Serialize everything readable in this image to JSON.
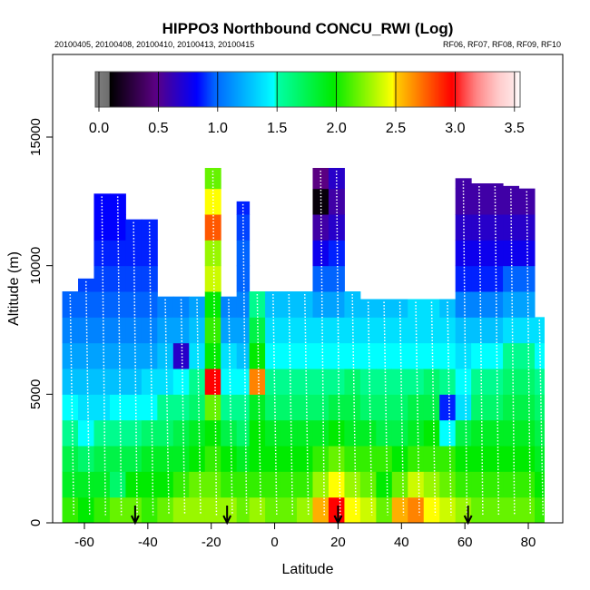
{
  "chart_data": {
    "type": "heatmap",
    "title": "HIPPO3 Northbound CONCU_RWI (Log)",
    "subtitle_left": "20100405, 20100408, 20100410, 20100413, 20100415",
    "subtitle_right": "RF06, RF07, RF08, RF09, RF10",
    "xlabel": "Latitude",
    "ylabel": "Altitude (m)",
    "xlim": [
      -70,
      91
    ],
    "ylim": [
      0,
      18200
    ],
    "xticks": [
      "-60",
      "-40",
      "-20",
      "0",
      "20",
      "40",
      "60",
      "80"
    ],
    "xtick_values": [
      -60,
      -40,
      -20,
      0,
      20,
      40,
      60,
      80
    ],
    "yticks": [
      "0",
      "5000",
      "10000",
      "15000"
    ],
    "ytick_values": [
      0,
      5000,
      10000,
      15000
    ],
    "colorbar": {
      "ticks": [
        "0.0",
        "0.5",
        "1.0",
        "1.5",
        "2.0",
        "2.5",
        "3.0",
        "3.5"
      ],
      "tick_values": [
        0,
        0.5,
        1.0,
        1.5,
        2.0,
        2.5,
        3.0,
        3.5
      ],
      "range": [
        0,
        3.55
      ]
    },
    "altitude_bin_m": 1000,
    "columns": [
      {
        "lat": [
          -67,
          -62
        ],
        "top": 9000,
        "values": [
          2.1,
          1.9,
          1.8,
          1.6,
          1.5,
          1.3,
          1.2,
          1.1,
          1.0
        ]
      },
      {
        "lat": [
          -62,
          -57
        ],
        "top": 9500,
        "values": [
          2.0,
          1.9,
          1.7,
          1.5,
          1.4,
          1.3,
          1.2,
          1.1,
          1.0,
          0.95
        ]
      },
      {
        "lat": [
          -57,
          -52
        ],
        "top": 12800,
        "values": [
          2.1,
          1.9,
          1.8,
          1.6,
          1.4,
          1.3,
          1.2,
          1.1,
          1.0,
          0.95,
          0.9,
          0.85,
          0.85
        ]
      },
      {
        "lat": [
          -52,
          -47
        ],
        "top": 12800,
        "values": [
          2.2,
          1.7,
          1.8,
          1.6,
          1.5,
          1.3,
          1.2,
          1.1,
          1.0,
          0.95,
          0.9,
          0.85,
          0.85
        ]
      },
      {
        "lat": [
          -47,
          -42
        ],
        "top": 11800,
        "values": [
          2.2,
          2.0,
          1.8,
          1.6,
          1.5,
          1.3,
          1.2,
          1.1,
          1.0,
          0.95,
          0.9,
          0.9
        ]
      },
      {
        "lat": [
          -42,
          -37
        ],
        "top": 11800,
        "values": [
          2.1,
          2.0,
          1.9,
          1.7,
          1.5,
          1.4,
          1.2,
          1.1,
          1.0,
          0.95,
          0.9,
          0.9
        ]
      },
      {
        "lat": [
          -37,
          -32
        ],
        "top": 8800,
        "values": [
          2.2,
          2.0,
          1.9,
          1.7,
          1.6,
          1.4,
          1.3,
          1.2,
          1.1
        ]
      },
      {
        "lat": [
          -32,
          -27
        ],
        "top": 8800,
        "values": [
          2.3,
          2.1,
          1.9,
          1.8,
          1.6,
          1.5,
          0.7,
          1.2,
          1.1
        ]
      },
      {
        "lat": [
          -27,
          -22
        ],
        "top": 8800,
        "values": [
          2.3,
          2.2,
          2.0,
          1.9,
          1.7,
          1.6,
          1.4,
          1.3,
          1.2
        ]
      },
      {
        "lat": [
          -22,
          -17
        ],
        "top": 13800,
        "values": [
          2.3,
          2.2,
          2.1,
          2.0,
          2.2,
          3.0,
          2.0,
          2.1,
          2.0,
          2.4,
          2.3,
          2.8,
          2.5,
          2.2
        ]
      },
      {
        "lat": [
          -17,
          -12
        ],
        "top": 8800,
        "values": [
          2.3,
          2.1,
          2.0,
          1.8,
          1.6,
          1.5,
          1.4,
          1.2,
          1.1
        ]
      },
      {
        "lat": [
          -12,
          -8
        ],
        "top": 12500,
        "values": [
          2.2,
          2.1,
          1.9,
          1.7,
          1.6,
          1.5,
          1.3,
          1.2,
          1.1,
          1.0,
          1.0,
          0.95,
          0.9
        ]
      },
      {
        "lat": [
          -8,
          -3
        ],
        "top": 9000,
        "values": [
          2.3,
          2.1,
          2.0,
          2.0,
          1.9,
          2.7,
          2.0,
          1.8,
          1.6
        ]
      },
      {
        "lat": [
          -3,
          2
        ],
        "top": 9000,
        "values": [
          2.2,
          2.1,
          2.0,
          1.9,
          1.7,
          1.6,
          1.5,
          1.4,
          1.3
        ]
      },
      {
        "lat": [
          2,
          7
        ],
        "top": 9000,
        "values": [
          2.2,
          2.1,
          2.0,
          1.9,
          1.7,
          1.6,
          1.5,
          1.4,
          1.3
        ]
      },
      {
        "lat": [
          7,
          12
        ],
        "top": 9000,
        "values": [
          2.3,
          2.1,
          2.0,
          1.9,
          1.7,
          1.6,
          1.5,
          1.4,
          1.3
        ]
      },
      {
        "lat": [
          12,
          17
        ],
        "top": 13800,
        "values": [
          2.6,
          2.3,
          2.1,
          1.9,
          1.7,
          1.6,
          1.5,
          1.4,
          1.2,
          1.0,
          0.8,
          0.6,
          0.15,
          0.5
        ]
      },
      {
        "lat": [
          17,
          22
        ],
        "top": 13800,
        "values": [
          3.0,
          2.5,
          2.2,
          2.0,
          1.8,
          1.6,
          1.5,
          1.4,
          1.2,
          1.0,
          0.9,
          0.7,
          0.6,
          0.7
        ]
      },
      {
        "lat": [
          22,
          27
        ],
        "top": 9000,
        "values": [
          2.5,
          2.3,
          2.1,
          1.9,
          1.8,
          1.7,
          1.5,
          1.4,
          1.3
        ]
      },
      {
        "lat": [
          27,
          32
        ],
        "top": 8700,
        "values": [
          2.4,
          2.2,
          2.1,
          1.9,
          1.7,
          1.6,
          1.5,
          1.4,
          1.3
        ]
      },
      {
        "lat": [
          32,
          37
        ],
        "top": 8700,
        "values": [
          2.2,
          2.0,
          2.1,
          1.8,
          1.7,
          1.6,
          1.5,
          1.4,
          1.3
        ]
      },
      {
        "lat": [
          37,
          42
        ],
        "top": 8700,
        "values": [
          2.6,
          2.2,
          2.0,
          1.8,
          1.7,
          1.6,
          1.5,
          1.4,
          1.3
        ]
      },
      {
        "lat": [
          42,
          47
        ],
        "top": 8700,
        "values": [
          2.7,
          2.4,
          2.1,
          1.9,
          1.8,
          1.6,
          1.5,
          1.4,
          1.4
        ]
      },
      {
        "lat": [
          47,
          52
        ],
        "top": 8700,
        "values": [
          2.5,
          2.3,
          2.1,
          2.0,
          1.8,
          1.7,
          1.5,
          1.4,
          1.4
        ]
      },
      {
        "lat": [
          52,
          57
        ],
        "top": 8700,
        "values": [
          2.4,
          2.2,
          2.1,
          1.5,
          0.9,
          1.6,
          1.5,
          1.4,
          1.3
        ]
      },
      {
        "lat": [
          57,
          62
        ],
        "top": 13400,
        "values": [
          2.3,
          2.1,
          2.0,
          1.8,
          1.4,
          1.5,
          1.4,
          1.3,
          1.1,
          0.9,
          0.8,
          0.7,
          0.6,
          0.6
        ]
      },
      {
        "lat": [
          62,
          67
        ],
        "top": 13200,
        "values": [
          2.2,
          2.1,
          2.0,
          1.9,
          1.7,
          1.6,
          1.5,
          1.3,
          1.1,
          0.9,
          0.8,
          0.7,
          0.6,
          0.6
        ]
      },
      {
        "lat": [
          67,
          72
        ],
        "top": 13200,
        "values": [
          2.2,
          2.1,
          2.0,
          1.9,
          1.7,
          1.6,
          1.5,
          1.3,
          1.1,
          0.9,
          0.8,
          0.7,
          0.6,
          0.6
        ]
      },
      {
        "lat": [
          72,
          77
        ],
        "top": 13100,
        "values": [
          2.2,
          2.1,
          2.0,
          1.9,
          1.8,
          1.7,
          1.6,
          1.4,
          1.2,
          1.0,
          0.8,
          0.7,
          0.6,
          0.6
        ]
      },
      {
        "lat": [
          77,
          82
        ],
        "top": 13000,
        "values": [
          2.2,
          2.1,
          2.0,
          1.9,
          1.8,
          1.7,
          1.6,
          1.4,
          1.2,
          1.0,
          0.8,
          0.7,
          0.6
        ]
      },
      {
        "lat": [
          82,
          85
        ],
        "top": 8000,
        "values": [
          2.1,
          2.0,
          1.9,
          1.8,
          1.7,
          1.6,
          1.5,
          1.4
        ]
      }
    ],
    "arrows_lat": [
      -44,
      -15,
      20,
      61
    ]
  }
}
